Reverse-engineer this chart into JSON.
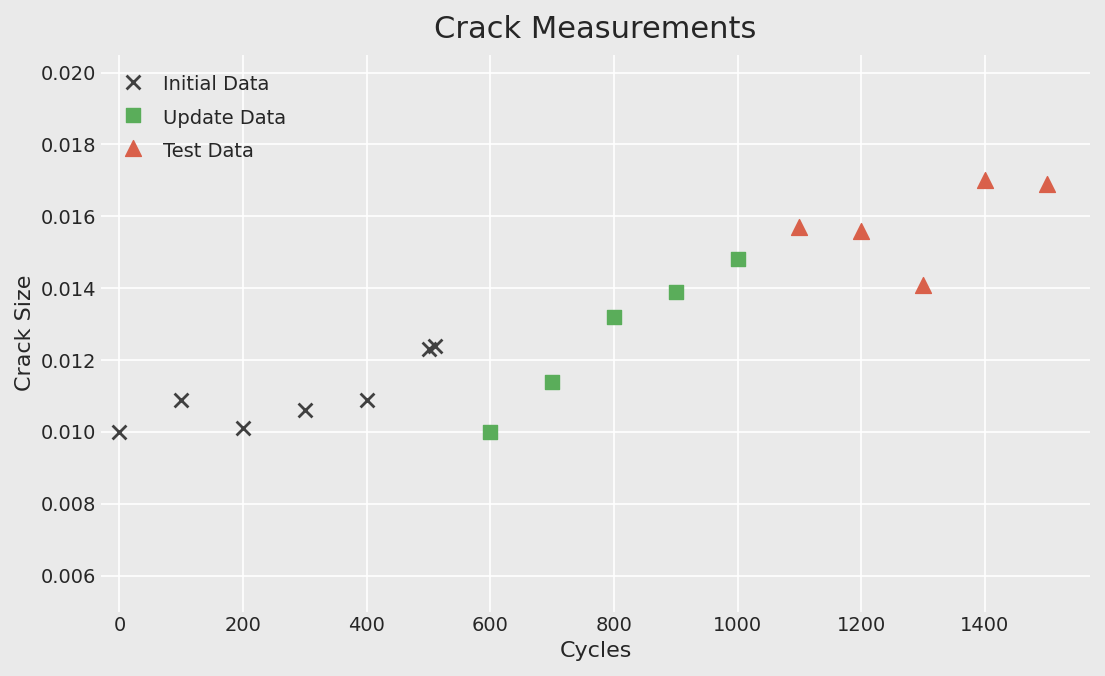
{
  "title": "Crack Measurements",
  "xlabel": "Cycles",
  "ylabel": "Crack Size",
  "background_color": "#eaeaea",
  "grid_color": "#ffffff",
  "ylim": [
    0.005,
    0.0205
  ],
  "xlim": [
    -30,
    1570
  ],
  "yticks": [
    0.006,
    0.008,
    0.01,
    0.012,
    0.014,
    0.016,
    0.018,
    0.02
  ],
  "xticks": [
    0,
    200,
    400,
    600,
    800,
    1000,
    1200,
    1400
  ],
  "initial_data": {
    "x": [
      0,
      100,
      200,
      300,
      400,
      500,
      510
    ],
    "y": [
      0.01,
      0.0109,
      0.0101,
      0.0106,
      0.0109,
      0.0123,
      0.0124
    ],
    "color": "#404040",
    "marker": "x",
    "label": "Initial Data",
    "markersize": 100,
    "linewidths": 2.0
  },
  "update_data": {
    "x": [
      600,
      700,
      800,
      900,
      1000
    ],
    "y": [
      0.01,
      0.0114,
      0.0132,
      0.0139,
      0.0148
    ],
    "color": "#5aad5a",
    "marker": "s",
    "label": "Update Data",
    "markersize": 110
  },
  "test_data": {
    "x": [
      1100,
      1200,
      1300,
      1400,
      1500
    ],
    "y": [
      0.0157,
      0.0156,
      0.0141,
      0.017,
      0.0169
    ],
    "color": "#d9604a",
    "marker": "^",
    "label": "Test Data",
    "markersize": 130
  },
  "title_fontsize": 22,
  "label_fontsize": 16,
  "tick_fontsize": 14,
  "legend_fontsize": 14
}
